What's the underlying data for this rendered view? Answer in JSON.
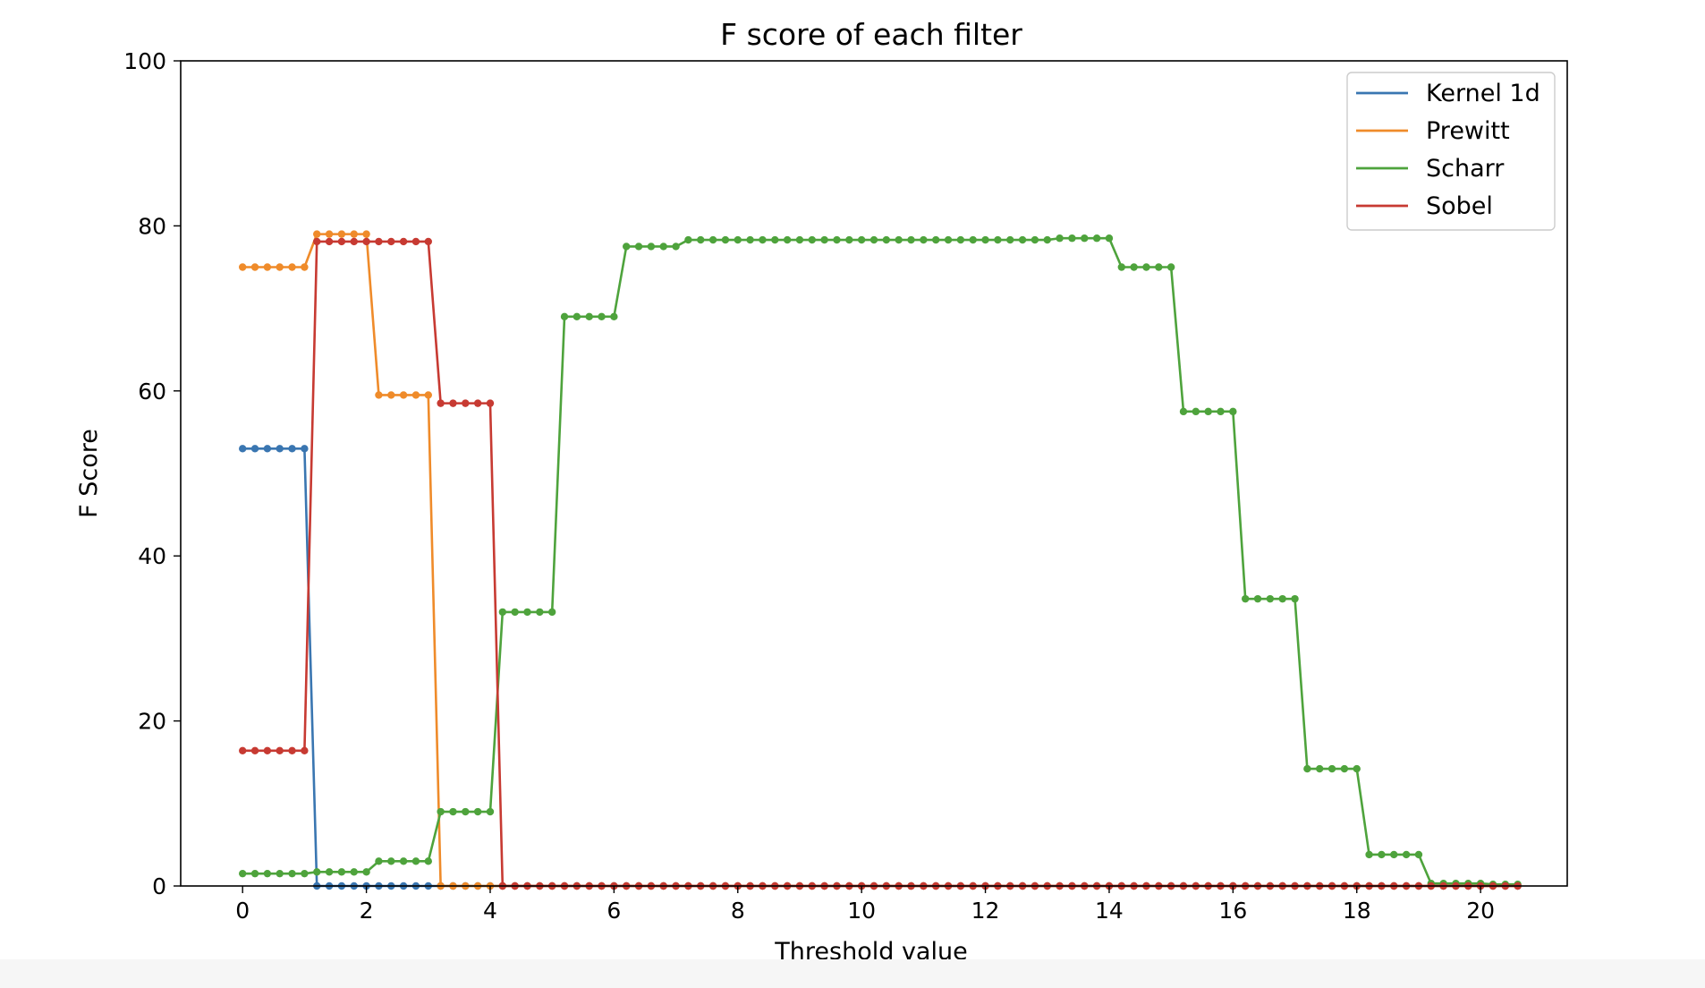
{
  "chart_data": {
    "type": "line",
    "title": "F score of each filter",
    "xlabel": "Threshold value",
    "ylabel": "F Score",
    "xlim": [
      -1,
      21.4
    ],
    "ylim": [
      0,
      100
    ],
    "xticks": [
      "0",
      "2",
      "4",
      "6",
      "8",
      "10",
      "12",
      "14",
      "16",
      "18",
      "20"
    ],
    "yticks": [
      "0",
      "20",
      "40",
      "60",
      "80",
      "100"
    ],
    "grid": false,
    "legend_position": "top-right",
    "markers": true,
    "x_start": 0,
    "x_step": 0.2,
    "series": [
      {
        "name": "Kernel 1d",
        "color": "#3a76b1",
        "values": [
          53,
          53,
          53,
          53,
          53,
          53,
          0,
          0,
          0,
          0,
          0,
          0,
          0,
          0,
          0,
          0,
          0,
          0,
          0,
          0,
          0,
          0,
          0,
          0,
          0,
          0,
          0,
          0,
          0,
          0,
          0,
          0,
          0,
          0,
          0,
          0,
          0,
          0,
          0,
          0,
          0,
          0,
          0,
          0,
          0,
          0,
          0,
          0,
          0,
          0,
          0,
          0,
          0,
          0,
          0,
          0,
          0,
          0,
          0,
          0,
          0,
          0,
          0,
          0,
          0,
          0,
          0,
          0,
          0,
          0,
          0,
          0,
          0,
          0,
          0,
          0,
          0,
          0,
          0,
          0,
          0,
          0,
          0,
          0,
          0,
          0,
          0,
          0,
          0,
          0,
          0,
          0,
          0,
          0,
          0,
          0,
          0,
          0,
          0,
          0,
          0,
          0,
          0,
          0
        ]
      },
      {
        "name": "Prewitt",
        "color": "#ef8b2a",
        "values": [
          75,
          75,
          75,
          75,
          75,
          75,
          79,
          79,
          79,
          79,
          79,
          59.5,
          59.5,
          59.5,
          59.5,
          59.5,
          0,
          0,
          0,
          0,
          0,
          0,
          0,
          0,
          0,
          0,
          0,
          0,
          0,
          0,
          0,
          0,
          0,
          0,
          0,
          0,
          0,
          0,
          0,
          0,
          0,
          0,
          0,
          0,
          0,
          0,
          0,
          0,
          0,
          0,
          0,
          0,
          0,
          0,
          0,
          0,
          0,
          0,
          0,
          0,
          0,
          0,
          0,
          0,
          0,
          0,
          0,
          0,
          0,
          0,
          0,
          0,
          0,
          0,
          0,
          0,
          0,
          0,
          0,
          0,
          0,
          0,
          0,
          0,
          0,
          0,
          0,
          0,
          0,
          0,
          0,
          0,
          0,
          0,
          0,
          0,
          0,
          0,
          0,
          0,
          0,
          0,
          0,
          0
        ]
      },
      {
        "name": "Scharr",
        "color": "#4ea33c",
        "values": [
          1.5,
          1.5,
          1.5,
          1.5,
          1.5,
          1.5,
          1.7,
          1.7,
          1.7,
          1.7,
          1.7,
          3,
          3,
          3,
          3,
          3,
          9,
          9,
          9,
          9,
          9,
          33.2,
          33.2,
          33.2,
          33.2,
          33.2,
          69,
          69,
          69,
          69,
          69,
          77.5,
          77.5,
          77.5,
          77.5,
          77.5,
          78.3,
          78.3,
          78.3,
          78.3,
          78.3,
          78.3,
          78.3,
          78.3,
          78.3,
          78.3,
          78.3,
          78.3,
          78.3,
          78.3,
          78.3,
          78.3,
          78.3,
          78.3,
          78.3,
          78.3,
          78.3,
          78.3,
          78.3,
          78.3,
          78.3,
          78.3,
          78.3,
          78.3,
          78.3,
          78.3,
          78.5,
          78.5,
          78.5,
          78.5,
          78.5,
          75,
          75,
          75,
          75,
          75,
          57.5,
          57.5,
          57.5,
          57.5,
          57.5,
          34.8,
          34.8,
          34.8,
          34.8,
          34.8,
          14.2,
          14.2,
          14.2,
          14.2,
          14.2,
          3.8,
          3.8,
          3.8,
          3.8,
          3.8,
          0.3,
          0.3,
          0.3,
          0.3,
          0.3,
          0.2,
          0.2,
          0.2
        ]
      },
      {
        "name": "Sobel",
        "color": "#c73a32",
        "values": [
          16.4,
          16.4,
          16.4,
          16.4,
          16.4,
          16.4,
          78.1,
          78.1,
          78.1,
          78.1,
          78.1,
          78.1,
          78.1,
          78.1,
          78.1,
          78.1,
          58.5,
          58.5,
          58.5,
          58.5,
          58.5,
          0,
          0,
          0,
          0,
          0,
          0,
          0,
          0,
          0,
          0,
          0,
          0,
          0,
          0,
          0,
          0,
          0,
          0,
          0,
          0,
          0,
          0,
          0,
          0,
          0,
          0,
          0,
          0,
          0,
          0,
          0,
          0,
          0,
          0,
          0,
          0,
          0,
          0,
          0,
          0,
          0,
          0,
          0,
          0,
          0,
          0,
          0,
          0,
          0,
          0,
          0,
          0,
          0,
          0,
          0,
          0,
          0,
          0,
          0,
          0,
          0,
          0,
          0,
          0,
          0,
          0,
          0,
          0,
          0,
          0,
          0,
          0,
          0,
          0,
          0,
          0,
          0,
          0,
          0,
          0,
          0,
          0,
          0
        ]
      }
    ]
  }
}
